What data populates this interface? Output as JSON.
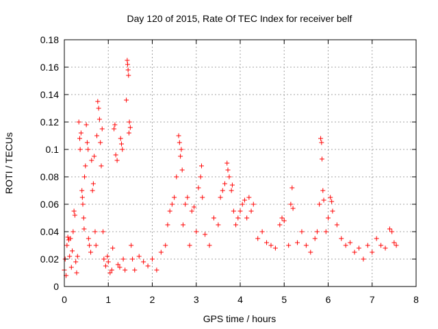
{
  "chart_data": {
    "type": "scatter",
    "title": "Day 120 of 2015, Rate Of TEC Index for receiver belf",
    "xlabel": "GPS time / hours",
    "ylabel": "ROTI / TECUs",
    "xlim": [
      0,
      8
    ],
    "ylim": [
      0,
      0.18
    ],
    "xticks": [
      0,
      1,
      2,
      3,
      4,
      5,
      6,
      7,
      8
    ],
    "xtick_labels": [
      "0",
      "1",
      "2",
      "3",
      "4",
      "5",
      "6",
      "7",
      "8"
    ],
    "yticks": [
      0,
      0.02,
      0.04,
      0.06,
      0.08,
      0.1,
      0.12,
      0.14,
      0.16,
      0.18
    ],
    "ytick_labels": [
      "0",
      "0.02",
      "0.04",
      "0.06",
      "0.08",
      "0.1",
      "0.12",
      "0.14",
      "0.16",
      "0.18"
    ],
    "grid": true,
    "marker": "+",
    "color": "#ff0000",
    "series": [
      {
        "name": "ROTI",
        "points": [
          [
            0.0,
            0.012
          ],
          [
            0.02,
            0.02
          ],
          [
            0.04,
            0.008
          ],
          [
            0.06,
            0.03
          ],
          [
            0.08,
            0.036
          ],
          [
            0.1,
            0.034
          ],
          [
            0.12,
            0.022
          ],
          [
            0.14,
            0.035
          ],
          [
            0.16,
            0.014
          ],
          [
            0.18,
            0.026
          ],
          [
            0.2,
            0.04
          ],
          [
            0.22,
            0.055
          ],
          [
            0.24,
            0.052
          ],
          [
            0.26,
            0.018
          ],
          [
            0.28,
            0.01
          ],
          [
            0.3,
            0.022
          ],
          [
            0.33,
            0.12
          ],
          [
            0.35,
            0.108
          ],
          [
            0.36,
            0.1
          ],
          [
            0.38,
            0.112
          ],
          [
            0.4,
            0.07
          ],
          [
            0.41,
            0.065
          ],
          [
            0.42,
            0.06
          ],
          [
            0.44,
            0.05
          ],
          [
            0.45,
            0.042
          ],
          [
            0.46,
            0.08
          ],
          [
            0.48,
            0.088
          ],
          [
            0.5,
            0.118
          ],
          [
            0.52,
            0.105
          ],
          [
            0.54,
            0.1
          ],
          [
            0.55,
            0.035
          ],
          [
            0.57,
            0.03
          ],
          [
            0.6,
            0.025
          ],
          [
            0.62,
            0.092
          ],
          [
            0.64,
            0.07
          ],
          [
            0.66,
            0.075
          ],
          [
            0.68,
            0.095
          ],
          [
            0.7,
            0.04
          ],
          [
            0.72,
            0.03
          ],
          [
            0.74,
            0.11
          ],
          [
            0.76,
            0.135
          ],
          [
            0.78,
            0.13
          ],
          [
            0.8,
            0.122
          ],
          [
            0.82,
            0.105
          ],
          [
            0.84,
            0.088
          ],
          [
            0.86,
            0.115
          ],
          [
            0.88,
            0.04
          ],
          [
            0.9,
            0.02
          ],
          [
            0.94,
            0.015
          ],
          [
            0.98,
            0.022
          ],
          [
            1.0,
            0.018
          ],
          [
            1.04,
            0.01
          ],
          [
            1.08,
            0.012
          ],
          [
            1.1,
            0.028
          ],
          [
            1.13,
            0.115
          ],
          [
            1.15,
            0.118
          ],
          [
            1.17,
            0.096
          ],
          [
            1.2,
            0.092
          ],
          [
            1.22,
            0.016
          ],
          [
            1.26,
            0.014
          ],
          [
            1.28,
            0.108
          ],
          [
            1.3,
            0.104
          ],
          [
            1.32,
            0.1
          ],
          [
            1.34,
            0.02
          ],
          [
            1.38,
            0.012
          ],
          [
            1.41,
            0.136
          ],
          [
            1.43,
            0.165
          ],
          [
            1.44,
            0.162
          ],
          [
            1.45,
            0.158
          ],
          [
            1.46,
            0.154
          ],
          [
            1.47,
            0.112
          ],
          [
            1.48,
            0.12
          ],
          [
            1.5,
            0.116
          ],
          [
            1.52,
            0.03
          ],
          [
            1.55,
            0.02
          ],
          [
            1.6,
            0.012
          ],
          [
            1.7,
            0.022
          ],
          [
            1.8,
            0.018
          ],
          [
            1.9,
            0.015
          ],
          [
            2.0,
            0.02
          ],
          [
            2.1,
            0.012
          ],
          [
            2.2,
            0.025
          ],
          [
            2.3,
            0.03
          ],
          [
            2.35,
            0.045
          ],
          [
            2.4,
            0.055
          ],
          [
            2.45,
            0.06
          ],
          [
            2.5,
            0.065
          ],
          [
            2.55,
            0.08
          ],
          [
            2.6,
            0.11
          ],
          [
            2.62,
            0.105
          ],
          [
            2.64,
            0.095
          ],
          [
            2.66,
            0.1
          ],
          [
            2.68,
            0.085
          ],
          [
            2.7,
            0.045
          ],
          [
            2.75,
            0.06
          ],
          [
            2.8,
            0.065
          ],
          [
            2.85,
            0.03
          ],
          [
            2.9,
            0.055
          ],
          [
            2.95,
            0.058
          ],
          [
            3.0,
            0.04
          ],
          [
            3.05,
            0.072
          ],
          [
            3.1,
            0.08
          ],
          [
            3.12,
            0.088
          ],
          [
            3.14,
            0.065
          ],
          [
            3.2,
            0.038
          ],
          [
            3.3,
            0.03
          ],
          [
            3.4,
            0.05
          ],
          [
            3.5,
            0.045
          ],
          [
            3.55,
            0.065
          ],
          [
            3.6,
            0.07
          ],
          [
            3.65,
            0.075
          ],
          [
            3.7,
            0.09
          ],
          [
            3.72,
            0.085
          ],
          [
            3.75,
            0.08
          ],
          [
            3.8,
            0.07
          ],
          [
            3.82,
            0.074
          ],
          [
            3.85,
            0.055
          ],
          [
            3.9,
            0.045
          ],
          [
            3.95,
            0.05
          ],
          [
            4.0,
            0.055
          ],
          [
            4.05,
            0.06
          ],
          [
            4.1,
            0.063
          ],
          [
            4.15,
            0.05
          ],
          [
            4.2,
            0.065
          ],
          [
            4.25,
            0.055
          ],
          [
            4.3,
            0.06
          ],
          [
            4.4,
            0.035
          ],
          [
            4.5,
            0.04
          ],
          [
            4.6,
            0.032
          ],
          [
            4.7,
            0.03
          ],
          [
            4.8,
            0.028
          ],
          [
            4.9,
            0.045
          ],
          [
            4.95,
            0.05
          ],
          [
            5.0,
            0.048
          ],
          [
            5.1,
            0.03
          ],
          [
            5.15,
            0.06
          ],
          [
            5.18,
            0.072
          ],
          [
            5.2,
            0.057
          ],
          [
            5.3,
            0.032
          ],
          [
            5.4,
            0.04
          ],
          [
            5.5,
            0.03
          ],
          [
            5.6,
            0.025
          ],
          [
            5.7,
            0.035
          ],
          [
            5.75,
            0.04
          ],
          [
            5.8,
            0.06
          ],
          [
            5.83,
            0.108
          ],
          [
            5.85,
            0.105
          ],
          [
            5.86,
            0.093
          ],
          [
            5.88,
            0.07
          ],
          [
            5.9,
            0.063
          ],
          [
            5.95,
            0.04
          ],
          [
            6.0,
            0.05
          ],
          [
            6.05,
            0.065
          ],
          [
            6.08,
            0.062
          ],
          [
            6.1,
            0.055
          ],
          [
            6.2,
            0.045
          ],
          [
            6.3,
            0.035
          ],
          [
            6.4,
            0.03
          ],
          [
            6.5,
            0.032
          ],
          [
            6.6,
            0.025
          ],
          [
            6.7,
            0.028
          ],
          [
            6.8,
            0.02
          ],
          [
            6.9,
            0.03
          ],
          [
            7.0,
            0.025
          ],
          [
            7.1,
            0.035
          ],
          [
            7.2,
            0.03
          ],
          [
            7.3,
            0.028
          ],
          [
            7.4,
            0.042
          ],
          [
            7.45,
            0.04
          ],
          [
            7.5,
            0.032
          ],
          [
            7.55,
            0.03
          ]
        ]
      }
    ]
  }
}
